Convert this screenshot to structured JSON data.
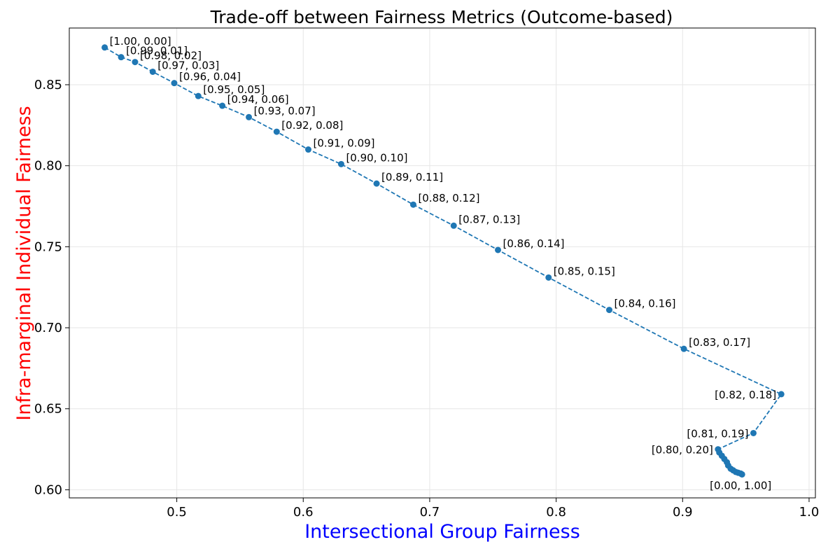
{
  "chart_data": {
    "type": "line",
    "title": "Trade-off between Fairness Metrics (Outcome-based)",
    "xlabel": "Intersectional Group Fairness",
    "ylabel": "Infra-marginal Individual Fairness",
    "xlabel_color": "#0000ff",
    "ylabel_color": "#ff0000",
    "line_color": "#1f77b4",
    "line_style": "dashed",
    "marker": "circle",
    "grid": true,
    "xlim": [
      0.415,
      1.005
    ],
    "ylim": [
      0.595,
      0.885
    ],
    "xticks": [
      "0.5",
      "0.6",
      "0.7",
      "0.8",
      "0.9",
      "1.0"
    ],
    "yticks": [
      "0.60",
      "0.65",
      "0.70",
      "0.75",
      "0.80",
      "0.85"
    ],
    "series": [
      {
        "points": [
          {
            "x": 0.443,
            "y": 0.873,
            "label": "[1.00, 0.00]"
          },
          {
            "x": 0.456,
            "y": 0.867,
            "label": "[0.99, 0.01]"
          },
          {
            "x": 0.467,
            "y": 0.864,
            "label": "[0.98, 0.02]"
          },
          {
            "x": 0.481,
            "y": 0.858,
            "label": "[0.97, 0.03]"
          },
          {
            "x": 0.498,
            "y": 0.851,
            "label": "[0.96, 0.04]"
          },
          {
            "x": 0.517,
            "y": 0.843,
            "label": "[0.95, 0.05]"
          },
          {
            "x": 0.536,
            "y": 0.837,
            "label": "[0.94, 0.06]"
          },
          {
            "x": 0.557,
            "y": 0.83,
            "label": "[0.93, 0.07]"
          },
          {
            "x": 0.579,
            "y": 0.821,
            "label": "[0.92, 0.08]"
          },
          {
            "x": 0.604,
            "y": 0.81,
            "label": "[0.91, 0.09]"
          },
          {
            "x": 0.63,
            "y": 0.801,
            "label": "[0.90, 0.10]"
          },
          {
            "x": 0.658,
            "y": 0.789,
            "label": "[0.89, 0.11]"
          },
          {
            "x": 0.687,
            "y": 0.776,
            "label": "[0.88, 0.12]"
          },
          {
            "x": 0.719,
            "y": 0.763,
            "label": "[0.87, 0.13]"
          },
          {
            "x": 0.754,
            "y": 0.748,
            "label": "[0.86, 0.14]"
          },
          {
            "x": 0.794,
            "y": 0.731,
            "label": "[0.85, 0.15]"
          },
          {
            "x": 0.842,
            "y": 0.711,
            "label": "[0.84, 0.16]"
          },
          {
            "x": 0.901,
            "y": 0.687,
            "label": "[0.83, 0.17]"
          },
          {
            "x": 0.978,
            "y": 0.659,
            "label": "[0.82, 0.18]",
            "label_side": "left"
          },
          {
            "x": 0.956,
            "y": 0.635,
            "label": "[0.81, 0.19]",
            "label_side": "left"
          },
          {
            "x": 0.928,
            "y": 0.625,
            "label": "[0.80, 0.20]",
            "label_side": "left"
          },
          {
            "x": 0.929,
            "y": 0.623
          },
          {
            "x": 0.931,
            "y": 0.621
          },
          {
            "x": 0.933,
            "y": 0.619
          },
          {
            "x": 0.935,
            "y": 0.617
          },
          {
            "x": 0.936,
            "y": 0.615
          },
          {
            "x": 0.938,
            "y": 0.613
          },
          {
            "x": 0.94,
            "y": 0.612
          },
          {
            "x": 0.942,
            "y": 0.611
          },
          {
            "x": 0.944,
            "y": 0.6105
          },
          {
            "x": 0.946,
            "y": 0.61
          },
          {
            "x": 0.947,
            "y": 0.6095,
            "label": "[0.00, 1.00]",
            "label_side": "below"
          }
        ]
      }
    ]
  }
}
